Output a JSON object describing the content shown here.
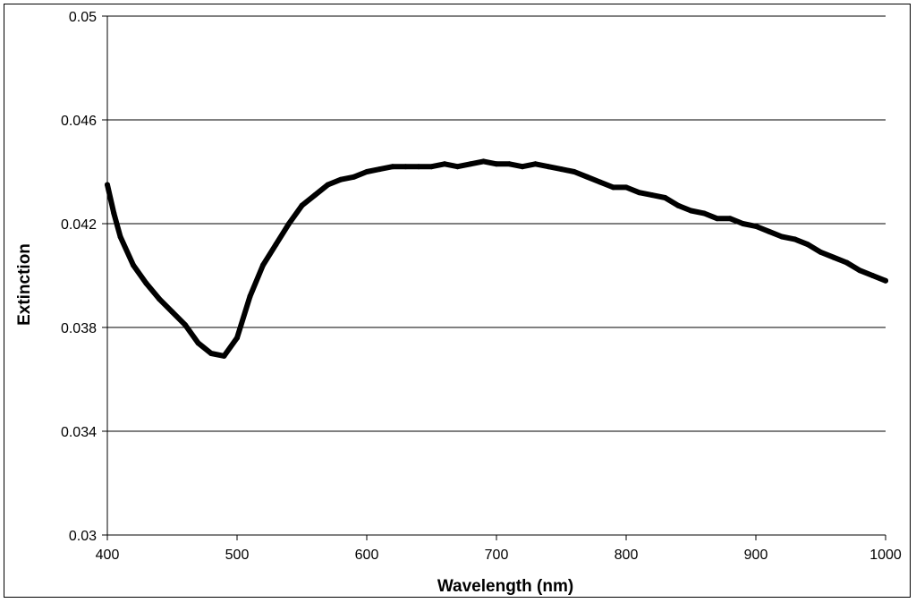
{
  "chart_data": {
    "type": "line",
    "title": "",
    "xlabel": "Wavelength (nm)",
    "ylabel": "Extinction",
    "xlim": [
      400,
      1000
    ],
    "ylim": [
      0.03,
      0.05
    ],
    "x_ticks": [
      400,
      500,
      600,
      700,
      800,
      900,
      1000
    ],
    "x_tick_labels": [
      "400",
      "500",
      "600",
      "700",
      "800",
      "900",
      "1000"
    ],
    "y_ticks": [
      0.03,
      0.034,
      0.038,
      0.042,
      0.046,
      0.05
    ],
    "y_tick_labels": [
      "0.03",
      "0.034",
      "0.038",
      "0.042",
      "0.046",
      "0.05"
    ],
    "grid": "horizontal major gridlines",
    "legend": "none",
    "line_color": "#000000",
    "series": [
      {
        "x": [
          400,
          405,
          410,
          420,
          430,
          440,
          450,
          460,
          470,
          480,
          490,
          500,
          510,
          520,
          530,
          540,
          550,
          560,
          570,
          580,
          590,
          600,
          610,
          620,
          630,
          640,
          650,
          660,
          670,
          680,
          690,
          700,
          710,
          720,
          730,
          740,
          750,
          760,
          770,
          780,
          790,
          800,
          810,
          820,
          830,
          840,
          850,
          860,
          870,
          880,
          890,
          900,
          910,
          920,
          930,
          940,
          950,
          960,
          970,
          980,
          990,
          1000
        ],
        "y": [
          0.0435,
          0.0424,
          0.0415,
          0.0404,
          0.0397,
          0.0391,
          0.0386,
          0.0381,
          0.0374,
          0.037,
          0.0369,
          0.0376,
          0.0392,
          0.0404,
          0.0412,
          0.042,
          0.0427,
          0.0431,
          0.0435,
          0.0437,
          0.0438,
          0.044,
          0.0441,
          0.0442,
          0.0442,
          0.0442,
          0.0442,
          0.0443,
          0.0442,
          0.0443,
          0.0444,
          0.0443,
          0.0443,
          0.0442,
          0.0443,
          0.0442,
          0.0441,
          0.044,
          0.0438,
          0.0436,
          0.0434,
          0.0434,
          0.0432,
          0.0431,
          0.043,
          0.0427,
          0.0425,
          0.0424,
          0.0422,
          0.0422,
          0.042,
          0.0419,
          0.0417,
          0.0415,
          0.0414,
          0.0412,
          0.0409,
          0.0407,
          0.0405,
          0.0402,
          0.04,
          0.0398
        ]
      }
    ]
  }
}
